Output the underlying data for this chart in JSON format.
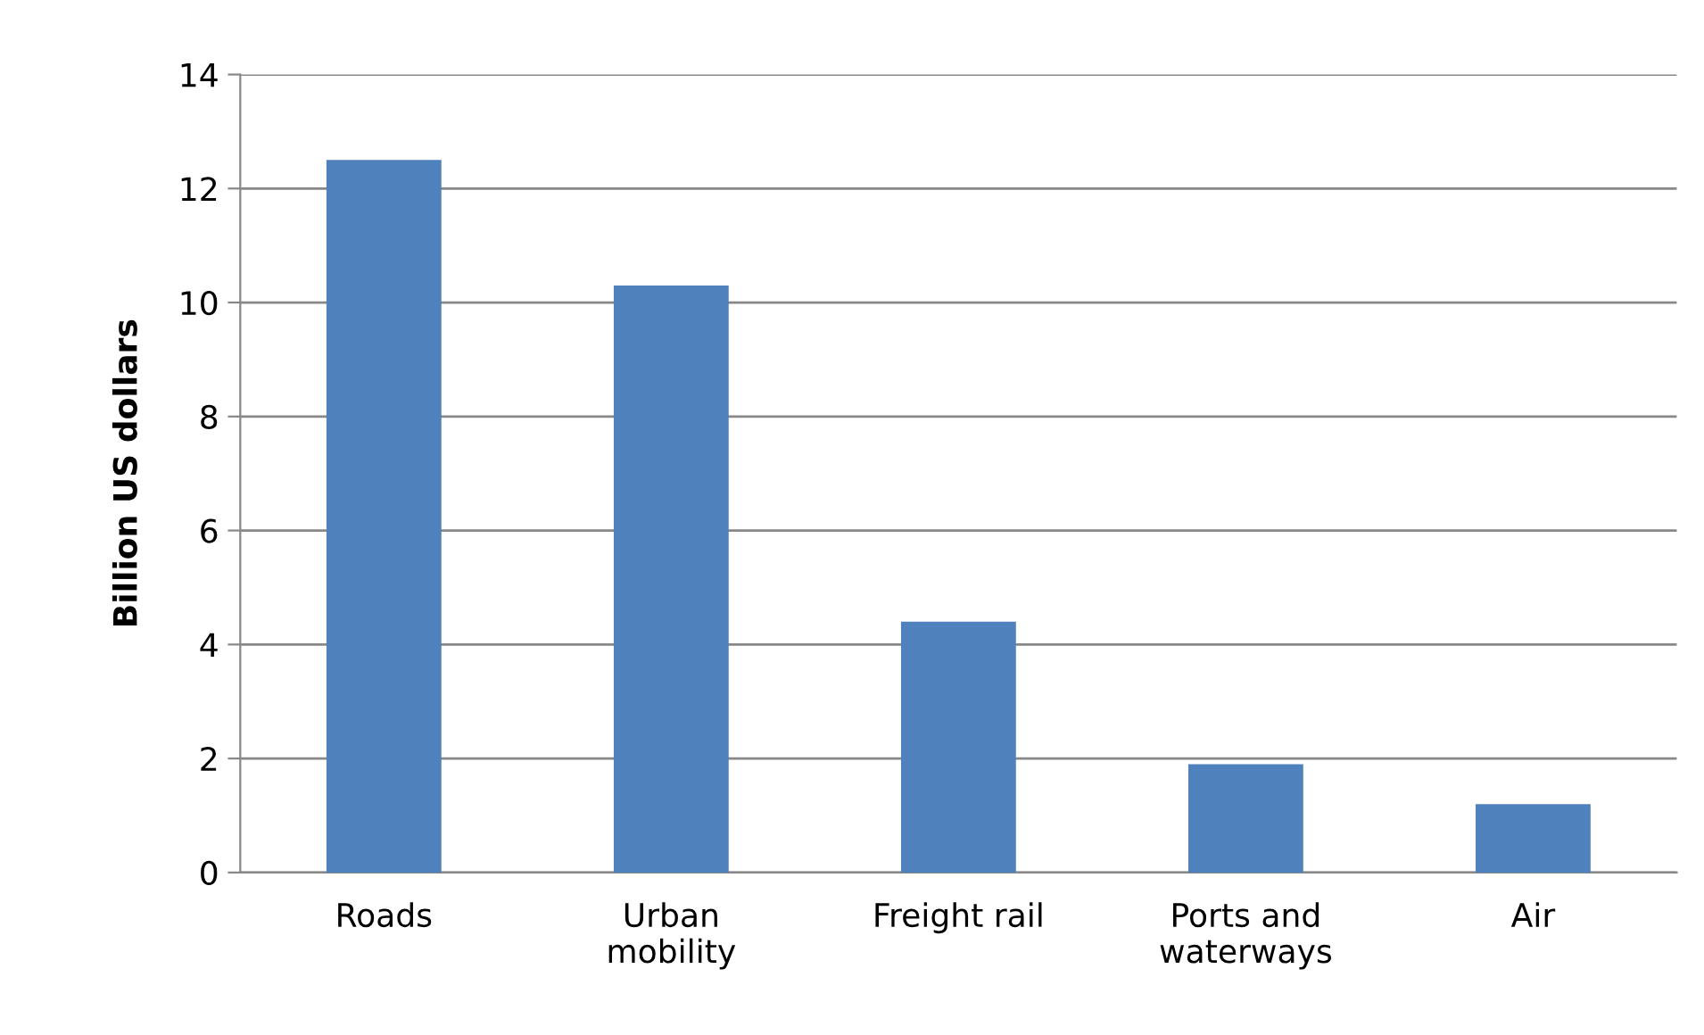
{
  "chart_data": {
    "type": "bar",
    "ylabel": "Billion US dollars",
    "categories": [
      "Roads",
      "Urban\nmobility",
      "Freight rail",
      "Ports and\nwaterways",
      "Air"
    ],
    "values": [
      12.5,
      10.3,
      4.4,
      1.9,
      1.2
    ],
    "color": "#4f81bd",
    "ylim": [
      0,
      14
    ],
    "yticks": [
      0,
      2,
      4,
      6,
      8,
      10,
      12,
      14
    ],
    "grid": "y",
    "legend": false
  }
}
